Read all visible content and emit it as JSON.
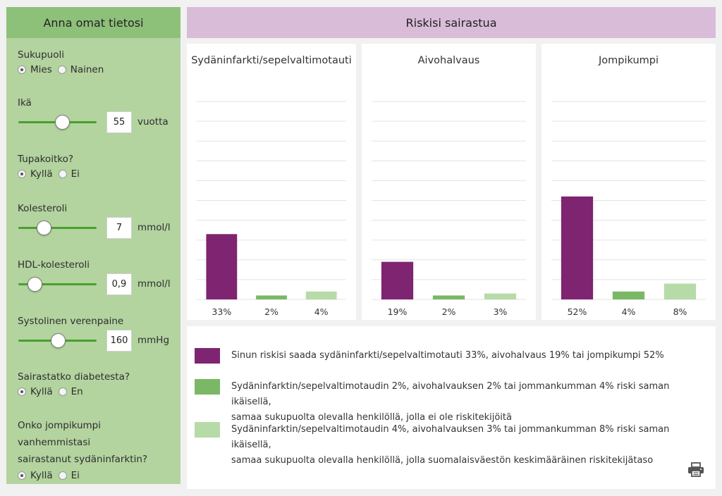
{
  "left": {
    "title": "Anna omat tietosi",
    "gender": {
      "label": "Sukupuoli",
      "options": [
        "Mies",
        "Nainen"
      ],
      "selected": 0
    },
    "age": {
      "label": "Ikä",
      "value": "55",
      "unit": "vuotta",
      "slider_fraction": 0.58
    },
    "smoker": {
      "label": "Tupakoitko?",
      "options": [
        "Kyllä",
        "Ei"
      ],
      "selected": 0
    },
    "cholesterol": {
      "label": "Kolesteroli",
      "value": "7",
      "unit": "mmol/l",
      "slider_fraction": 0.29
    },
    "hdl": {
      "label": "HDL-kolesteroli",
      "value": "0,9",
      "unit": "mmol/l",
      "slider_fraction": 0.14
    },
    "bp": {
      "label": "Systolinen verenpaine",
      "value": "160",
      "unit": "mmHg",
      "slider_fraction": 0.51
    },
    "diabetes": {
      "label": "Sairastatko diabetesta?",
      "options": [
        "Kyllä",
        "En"
      ],
      "selected": 0
    },
    "parents": {
      "label_line1": "Onko jompikumpi vanhemmistasi",
      "label_line2": "sairastanut sydäninfarktin?",
      "options": [
        "Kyllä",
        "Ei"
      ],
      "selected": 0
    }
  },
  "right": {
    "title": "Riskisi sairastua"
  },
  "colors": {
    "purple": "#7e2470",
    "green": "#7ab865",
    "lightgreen": "#b6dba7"
  },
  "chart_data": [
    {
      "type": "bar",
      "title": "Sydäninfarkti/sepelvaltimotauti",
      "categories": [
        "Sinun riskisi",
        "Ei riskitekijöitä",
        "Keskimääräinen"
      ],
      "values": [
        33,
        2,
        4
      ],
      "labels": [
        "33%",
        "2%",
        "4%"
      ],
      "ylim": [
        0,
        100
      ]
    },
    {
      "type": "bar",
      "title": "Aivohalvaus",
      "categories": [
        "Sinun riskisi",
        "Ei riskitekijöitä",
        "Keskimääräinen"
      ],
      "values": [
        19,
        2,
        3
      ],
      "labels": [
        "19%",
        "2%",
        "3%"
      ],
      "ylim": [
        0,
        100
      ]
    },
    {
      "type": "bar",
      "title": "Jompikumpi",
      "categories": [
        "Sinun riskisi",
        "Ei riskitekijöitä",
        "Keskimääräinen"
      ],
      "values": [
        52,
        4,
        8
      ],
      "labels": [
        "52%",
        "4%",
        "8%"
      ],
      "ylim": [
        0,
        100
      ]
    }
  ],
  "legend": [
    {
      "line1": "Sinun riskisi saada sydäninfarkti/sepelvaltimotauti 33%, aivohalvaus 19% tai jompikumpi 52%",
      "line2": ""
    },
    {
      "line1": "Sydäninfarktin/sepelvaltimotaudin 2%, aivohalvauksen 2% tai jommankumman 4% riski saman ikäisellä,",
      "line2": "samaa sukupuolta olevalla henkilöllä, jolla ei ole riskitekijöitä"
    },
    {
      "line1": "Sydäninfarktin/sepelvaltimotaudin 4%, aivohalvauksen 3% tai jommankumman 8% riski saman ikäisellä,",
      "line2": "samaa sukupuolta olevalla henkilöllä, jolla suomalaisväestön keskimääräinen riskitekijätaso"
    }
  ],
  "icons": {
    "print": "printer-icon"
  }
}
